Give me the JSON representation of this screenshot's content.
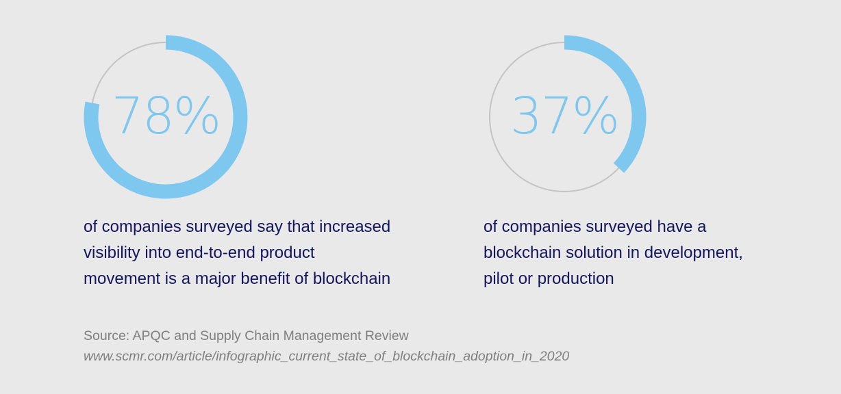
{
  "chart_data": [
    {
      "type": "donut",
      "value": 78,
      "max": 100,
      "label": "78%",
      "caption_lines": [
        "of companies surveyed say that increased",
        "visibility into end-to-end product",
        "movement is a major benefit of blockchain"
      ]
    },
    {
      "type": "donut",
      "value": 37,
      "max": 100,
      "label": "37%",
      "caption_lines": [
        "of companies surveyed have a",
        "blockchain solution in development,",
        "pilot or production"
      ]
    }
  ],
  "colors": {
    "background": "#e9e9e9",
    "arc": "#7ec7ee",
    "track": "#c4c4c4",
    "caption": "#15155f",
    "source": "#7f7f7f"
  },
  "source": {
    "text": "Source: APQC and Supply Chain Management Review",
    "url": "www.scmr.com/article/infographic_current_state_of_blockchain_adoption_in_2020"
  }
}
